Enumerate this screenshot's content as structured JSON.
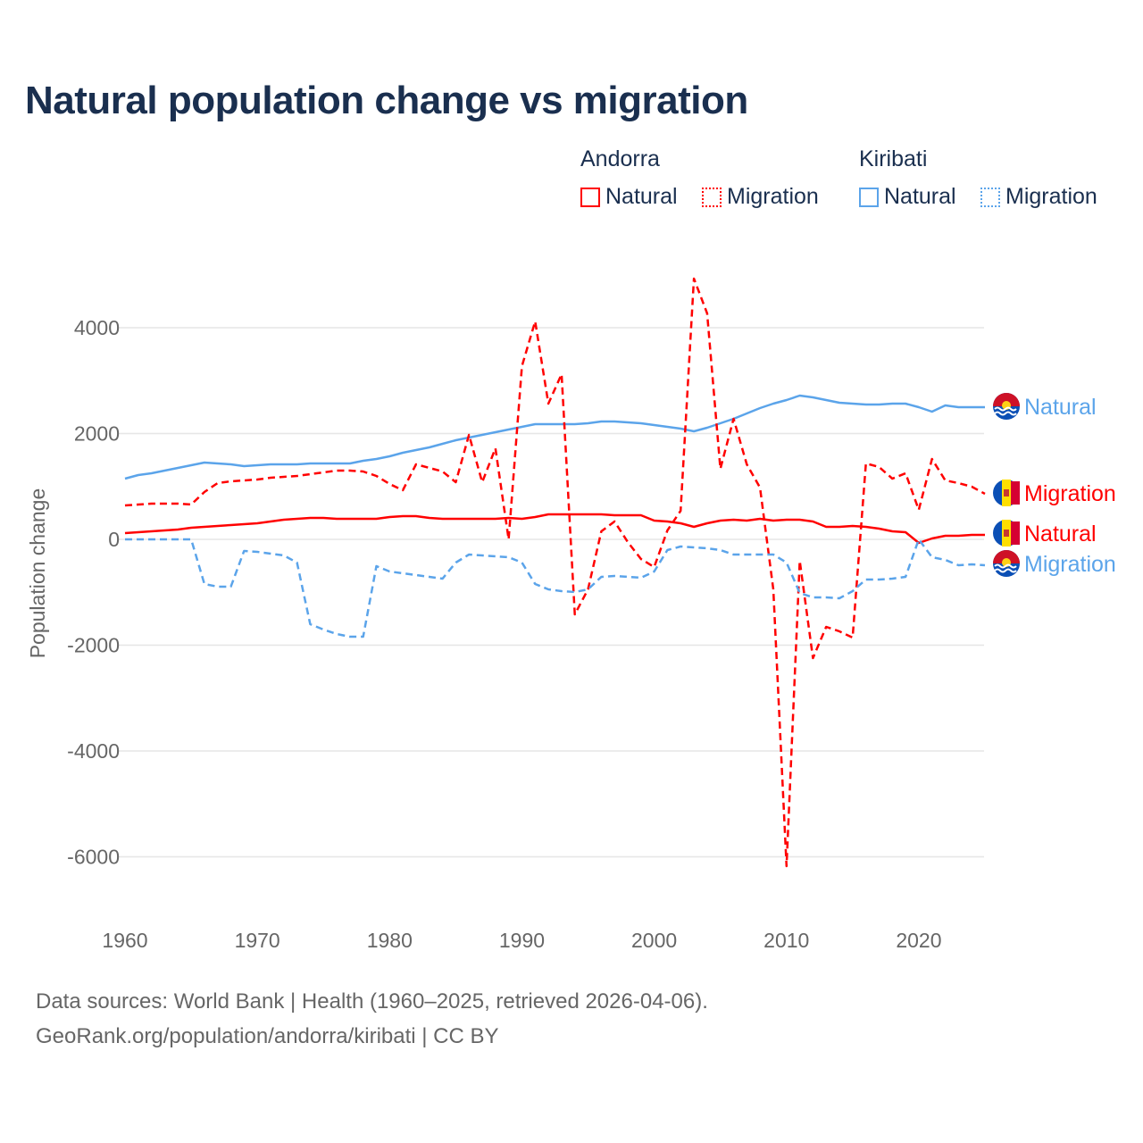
{
  "title": "Natural population change vs migration",
  "legend": {
    "groups": [
      {
        "name": "Andorra",
        "items": [
          {
            "label": "Natural",
            "style": "solid"
          },
          {
            "label": "Migration",
            "style": "dotted"
          }
        ]
      },
      {
        "name": "Kiribati",
        "items": [
          {
            "label": "Natural",
            "style": "solid"
          },
          {
            "label": "Migration",
            "style": "dotted"
          }
        ]
      }
    ]
  },
  "footer": {
    "line1": "Data sources: World Bank | Health (1960–2025, retrieved 2026-04-06).",
    "line2": "GeoRank.org/population/andorra/kiribati | CC BY"
  },
  "colors": {
    "andorra": "#ff0000",
    "kiribati": "#5ba4ea",
    "grid": "#e6e6e6",
    "axis_text": "#666666"
  },
  "chart_data": {
    "type": "line",
    "title": "Natural population change vs migration",
    "xlabel": "",
    "ylabel": "Population change",
    "xlim": [
      1960,
      2025
    ],
    "ylim": [
      -7000,
      5500
    ],
    "xticks": [
      1960,
      1970,
      1980,
      1990,
      2000,
      2010,
      2020
    ],
    "yticks": [
      -6000,
      -4000,
      -2000,
      0,
      2000,
      4000
    ],
    "grid": true,
    "x_start": 1960,
    "series": [
      {
        "name": "Kiribati Natural",
        "country": "Kiribati",
        "label": "Natural",
        "color": "#5ba4ea",
        "dash": false,
        "values": [
          1148,
          1215,
          1249,
          1300,
          1350,
          1401,
          1452,
          1435,
          1418,
          1384,
          1401,
          1418,
          1418,
          1418,
          1435,
          1435,
          1435,
          1435,
          1485,
          1519,
          1570,
          1637,
          1688,
          1739,
          1806,
          1874,
          1924,
          1975,
          2026,
          2076,
          2127,
          2178,
          2178,
          2178,
          2178,
          2194,
          2228,
          2228,
          2211,
          2194,
          2161,
          2127,
          2093,
          2043,
          2110,
          2194,
          2279,
          2380,
          2481,
          2565,
          2633,
          2718,
          2684,
          2633,
          2583,
          2565,
          2549,
          2549,
          2565,
          2565,
          2498,
          2414,
          2532,
          2498,
          2498,
          2498
        ]
      },
      {
        "name": "Andorra Migration",
        "country": "Andorra",
        "label": "Migration",
        "color": "#ff0000",
        "dash": true,
        "values": [
          641,
          658,
          675,
          675,
          675,
          658,
          895,
          1063,
          1097,
          1114,
          1131,
          1165,
          1182,
          1199,
          1232,
          1266,
          1300,
          1300,
          1283,
          1199,
          1047,
          928,
          1418,
          1350,
          1283,
          1080,
          1975,
          1080,
          1722,
          0,
          3275,
          4119,
          2566,
          3123,
          -1418,
          -945,
          152,
          338,
          -51,
          -371,
          -523,
          169,
          540,
          4929,
          4271,
          1334,
          2279,
          1418,
          979,
          -945,
          -6178,
          -405,
          -2245,
          -1654,
          -1739,
          -1857,
          1435,
          1367,
          1148,
          1249,
          557,
          1519,
          1114,
          1063,
          996,
          861
        ]
      },
      {
        "name": "Andorra Natural",
        "country": "Andorra",
        "label": "Natural",
        "color": "#ff0000",
        "dash": false,
        "values": [
          118,
          135,
          152,
          169,
          186,
          219,
          236,
          253,
          270,
          287,
          304,
          338,
          371,
          388,
          405,
          405,
          388,
          388,
          388,
          388,
          422,
          439,
          439,
          405,
          388,
          388,
          388,
          388,
          388,
          405,
          388,
          422,
          473,
          473,
          473,
          473,
          473,
          456,
          456,
          456,
          354,
          338,
          304,
          236,
          304,
          354,
          371,
          354,
          388,
          354,
          371,
          371,
          338,
          236,
          236,
          253,
          236,
          203,
          152,
          135,
          -68,
          17,
          68,
          68,
          84,
          84
        ]
      },
      {
        "name": "Kiribati Migration",
        "country": "Kiribati",
        "label": "Migration",
        "color": "#5ba4ea",
        "dash": true,
        "values": [
          0,
          0,
          0,
          0,
          0,
          0,
          -844,
          -895,
          -895,
          -219,
          -236,
          -270,
          -304,
          -439,
          -1604,
          -1705,
          -1789,
          -1840,
          -1840,
          -506,
          -608,
          -641,
          -675,
          -709,
          -743,
          -439,
          -287,
          -304,
          -321,
          -338,
          -439,
          -844,
          -945,
          -979,
          -996,
          -945,
          -709,
          -692,
          -709,
          -726,
          -608,
          -203,
          -135,
          -152,
          -169,
          -203,
          -287,
          -287,
          -287,
          -287,
          -439,
          -1013,
          -1097,
          -1097,
          -1114,
          -979,
          -760,
          -760,
          -743,
          -709,
          0,
          -338,
          -388,
          -490,
          -473,
          -490
        ]
      }
    ],
    "end_labels": [
      {
        "text": "Natural",
        "country": "Kiribati",
        "color": "#5ba4ea",
        "value": 2498
      },
      {
        "text": "Migration",
        "country": "Andorra",
        "color": "#ff0000",
        "value": 861
      },
      {
        "text": "Natural",
        "country": "Andorra",
        "color": "#ff0000",
        "value": 84
      },
      {
        "text": "Migration",
        "country": "Kiribati",
        "color": "#5ba4ea",
        "value": -490
      }
    ]
  }
}
